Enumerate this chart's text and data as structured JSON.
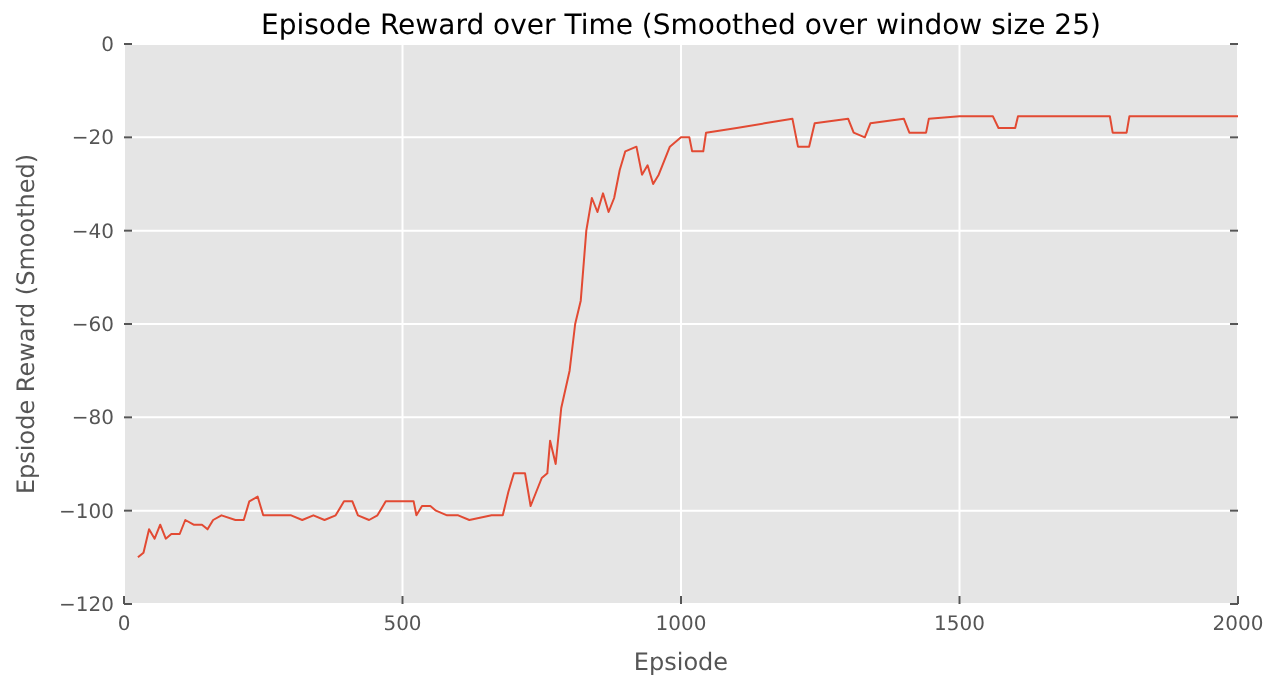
{
  "chart_data": {
    "type": "line",
    "title": "Episode Reward over Time (Smoothed over window size 25)",
    "xlabel": "Epsiode",
    "ylabel": "Epsiode Reward (Smoothed)",
    "x": [
      25,
      35,
      45,
      55,
      65,
      75,
      85,
      100,
      110,
      125,
      140,
      150,
      160,
      175,
      200,
      215,
      225,
      240,
      250,
      270,
      300,
      320,
      340,
      360,
      380,
      395,
      410,
      420,
      440,
      455,
      470,
      500,
      520,
      525,
      535,
      550,
      560,
      580,
      600,
      620,
      660,
      680,
      690,
      700,
      720,
      730,
      740,
      750,
      760,
      765,
      775,
      785,
      800,
      810,
      820,
      830,
      840,
      850,
      860,
      870,
      880,
      890,
      900,
      920,
      930,
      940,
      950,
      960,
      980,
      1000,
      1015,
      1020,
      1040,
      1045,
      1100,
      1150,
      1200,
      1210,
      1230,
      1240,
      1300,
      1310,
      1330,
      1340,
      1400,
      1410,
      1440,
      1445,
      1500,
      1560,
      1570,
      1600,
      1605,
      1700,
      1770,
      1775,
      1800,
      1805,
      2000
    ],
    "series": [
      {
        "color": "#e24a33",
        "values": [
          -110,
          -109,
          -104,
          -106,
          -103,
          -106,
          -105,
          -105,
          -102,
          -103,
          -103,
          -104,
          -102,
          -101,
          -102,
          -102,
          -98,
          -97,
          -101,
          -101,
          -101,
          -102,
          -101,
          -102,
          -101,
          -98,
          -98,
          -101,
          -102,
          -101,
          -98,
          -98,
          -98,
          -101,
          -99,
          -99,
          -100,
          -101,
          -101,
          -102,
          -101,
          -101,
          -96,
          -92,
          -92,
          -99,
          -96,
          -93,
          -92,
          -85,
          -90,
          -78,
          -70,
          -60,
          -55,
          -40,
          -33,
          -36,
          -32,
          -36,
          -33,
          -27,
          -23,
          -22,
          -28,
          -26,
          -30,
          -28,
          -22,
          -20,
          -20,
          -23,
          -23,
          -19,
          -18,
          -17,
          -16,
          -22,
          -22,
          -17,
          -16,
          -19,
          -20,
          -17,
          -16,
          -19,
          -19,
          -16,
          -15.5,
          -15.5,
          -18,
          -18,
          -15.5,
          -15.5,
          -15.5,
          -19,
          -19,
          -15.5,
          -15.5
        ]
      }
    ],
    "xlim": [
      0,
      2000
    ],
    "xticks": [
      0,
      500,
      1000,
      1500,
      2000
    ],
    "ylim": [
      -120,
      0
    ],
    "yticks": [
      -120,
      -100,
      -80,
      -60,
      -40,
      -20,
      0
    ],
    "grid": true,
    "marker": "none",
    "line_style": "solid"
  }
}
